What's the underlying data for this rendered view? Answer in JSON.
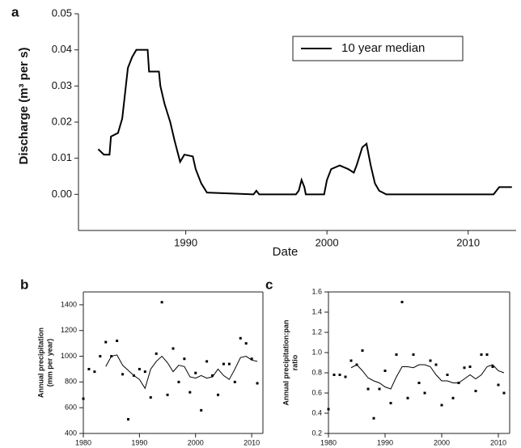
{
  "chart_data": [
    {
      "type": "line",
      "panel_label": "a",
      "xlabel": "Date",
      "ylabel": "Discharge (m³ per s)",
      "xlim": [
        1982.4,
        2013.4
      ],
      "xticks": [
        1990,
        2000,
        2010
      ],
      "ylim": [
        -0.01,
        0.05
      ],
      "yticks": [
        {
          "value": 0,
          "label": "0.00"
        },
        0.01,
        0.02,
        0.03,
        0.04,
        0.05
      ],
      "legend": "upper right",
      "series": [
        {
          "name": "10 year median",
          "color": "#000000",
          "x": [
            1983.8,
            1984.2,
            1984.6,
            1984.7,
            1985.2,
            1985.5,
            1985.7,
            1985.9,
            1986.2,
            1986.5,
            1987.3,
            1987.4,
            1988.1,
            1988.2,
            1988.5,
            1988.9,
            1989.2,
            1989.6,
            1989.9,
            1990.5,
            1990.7,
            1991.1,
            1991.5,
            1994.8,
            1995.0,
            1995.2,
            1997.8,
            1998.0,
            1998.2,
            1998.4,
            1998.5,
            1999.8,
            2000.0,
            2000.3,
            2000.9,
            2001.5,
            2001.9,
            2002.1,
            2002.5,
            2002.8,
            2003.1,
            2003.4,
            2003.7,
            2004.2,
            2011.8,
            2012.2,
            2013.1
          ],
          "values": [
            0.0125,
            0.011,
            0.011,
            0.016,
            0.017,
            0.021,
            0.028,
            0.035,
            0.038,
            0.04,
            0.04,
            0.034,
            0.034,
            0.03,
            0.025,
            0.02,
            0.015,
            0.009,
            0.011,
            0.0105,
            0.007,
            0.003,
            0.0005,
            0,
            0.001,
            0,
            0,
            0.001,
            0.004,
            0.002,
            0,
            0,
            0.004,
            0.007,
            0.008,
            0.007,
            0.006,
            0.008,
            0.013,
            0.014,
            0.008,
            0.003,
            0.001,
            0,
            0,
            0.002,
            0.002
          ]
        }
      ]
    },
    {
      "type": "scatter",
      "panel_label": "b",
      "xlabel": "Date",
      "ylabel": [
        "Annual precipitation",
        "(mm per year)"
      ],
      "xlim": [
        1980,
        2012
      ],
      "xticks": [
        1980,
        1990,
        2000,
        2010
      ],
      "ylim": [
        400,
        1500
      ],
      "yticks": [
        400,
        600,
        800,
        1000,
        1200,
        1400
      ],
      "series": [
        {
          "mode": "markers",
          "color": "#000000",
          "x": [
            1980,
            1981,
            1982,
            1983,
            1984,
            1985,
            1986,
            1987,
            1988,
            1989,
            1990,
            1991,
            1992,
            1993,
            1994,
            1995,
            1996,
            1997,
            1998,
            1999,
            2000,
            2001,
            2002,
            2003,
            2004,
            2005,
            2006,
            2007,
            2008,
            2009,
            2010,
            2011
          ],
          "values": [
            670,
            900,
            880,
            1000,
            1110,
            1000,
            1120,
            860,
            510,
            850,
            900,
            880,
            680,
            1020,
            1420,
            700,
            1060,
            800,
            980,
            720,
            870,
            580,
            960,
            850,
            700,
            940,
            940,
            800,
            1140,
            1100,
            980,
            790
          ]
        },
        {
          "mode": "line",
          "color": "#000000",
          "x": [
            1984,
            1985,
            1986,
            1987,
            1988,
            1989,
            1990,
            1991,
            1992,
            1993,
            1994,
            1995,
            1996,
            1997,
            1998,
            1999,
            2000,
            2001,
            2002,
            2003,
            2004,
            2005,
            2006,
            2007,
            2008,
            2009,
            2010,
            2011
          ],
          "values": [
            920,
            1000,
            1010,
            930,
            890,
            850,
            820,
            750,
            900,
            960,
            1000,
            950,
            880,
            930,
            920,
            840,
            830,
            850,
            830,
            840,
            900,
            850,
            820,
            900,
            990,
            1000,
            970,
            960
          ]
        }
      ]
    },
    {
      "type": "scatter",
      "panel_label": "c",
      "xlabel": "Date",
      "ylabel": [
        "Annual precipitation:pan",
        "ratio"
      ],
      "xlim": [
        1980,
        2012
      ],
      "xticks": [
        1980,
        1990,
        2000,
        2010
      ],
      "ylim": [
        0.2,
        1.6
      ],
      "yticks": [
        0.2,
        0.4,
        0.6,
        0.8,
        {
          "value": 1,
          "label": "1.0"
        },
        1.2,
        1.4,
        1.6
      ],
      "series": [
        {
          "mode": "markers",
          "color": "#000000",
          "x": [
            1980,
            1981,
            1982,
            1983,
            1984,
            1985,
            1986,
            1987,
            1988,
            1989,
            1990,
            1991,
            1992,
            1993,
            1994,
            1995,
            1996,
            1997,
            1998,
            1999,
            2000,
            2001,
            2002,
            2003,
            2004,
            2005,
            2006,
            2007,
            2008,
            2009,
            2010,
            2011
          ],
          "values": [
            0.44,
            0.78,
            0.78,
            0.76,
            0.92,
            0.88,
            1.02,
            0.64,
            0.35,
            0.64,
            0.82,
            0.5,
            0.98,
            1.5,
            0.55,
            0.98,
            0.7,
            0.6,
            0.92,
            0.88,
            0.48,
            0.78,
            0.55,
            0.7,
            0.85,
            0.86,
            0.62,
            0.98,
            0.98,
            0.86,
            0.68,
            0.6
          ]
        },
        {
          "mode": "line",
          "color": "#000000",
          "x": [
            1984,
            1985,
            1986,
            1987,
            1988,
            1989,
            1990,
            1991,
            1992,
            1993,
            1994,
            1995,
            1996,
            1997,
            1998,
            1999,
            2000,
            2001,
            2002,
            2003,
            2004,
            2005,
            2006,
            2007,
            2008,
            2009,
            2010,
            2011
          ],
          "values": [
            0.85,
            0.88,
            0.82,
            0.75,
            0.72,
            0.7,
            0.66,
            0.64,
            0.76,
            0.86,
            0.86,
            0.85,
            0.88,
            0.88,
            0.86,
            0.78,
            0.72,
            0.72,
            0.7,
            0.7,
            0.74,
            0.78,
            0.74,
            0.78,
            0.86,
            0.88,
            0.82,
            0.8
          ]
        }
      ]
    }
  ]
}
